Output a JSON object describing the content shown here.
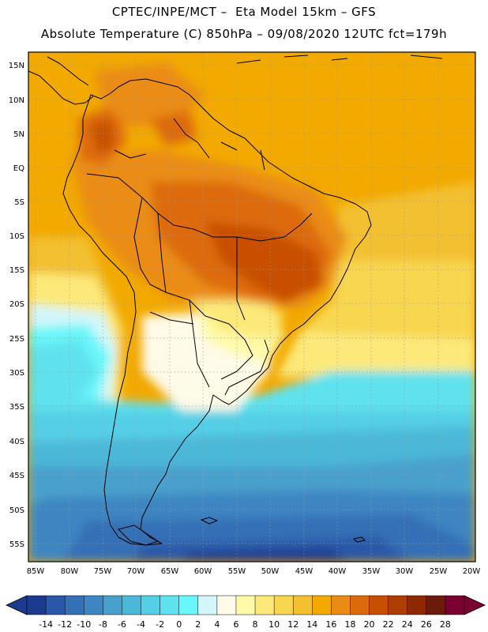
{
  "header": {
    "line1": "CPTEC/INPE/MCT –  Eta Model 15km – GFS",
    "line2": "Absolute Temperature (C) 850hPa – 09/08/2020 12UTC fct=179h"
  },
  "map": {
    "lat_labels": [
      "15N",
      "10N",
      "5N",
      "EQ",
      "5S",
      "10S",
      "15S",
      "20S",
      "25S",
      "30S",
      "35S",
      "40S",
      "45S",
      "50S",
      "55S"
    ],
    "lon_labels": [
      "85W",
      "80W",
      "75W",
      "70W",
      "65W",
      "60W",
      "55W",
      "50W",
      "45W",
      "40W",
      "35W",
      "30W",
      "25W",
      "20W"
    ],
    "graticule": "dotted"
  },
  "colorbar": {
    "labels": [
      "-14",
      "-12",
      "-10",
      "-8",
      "-6",
      "-4",
      "-2",
      "0",
      "2",
      "4",
      "6",
      "8",
      "10",
      "12",
      "14",
      "16",
      "18",
      "20",
      "22",
      "24",
      "26",
      "28"
    ],
    "colors": [
      "#1c3a8e",
      "#2a58a8",
      "#3470b6",
      "#3d86c2",
      "#4aa0cc",
      "#4cb8d8",
      "#55cfe6",
      "#5ee2ee",
      "#6af6fa",
      "#d2f6fa",
      "#fefae8",
      "#fefaa8",
      "#fce97a",
      "#f8d650",
      "#f3c030",
      "#f2a900",
      "#ea8c14",
      "#dd6a0a",
      "#c84f00",
      "#ad3d00",
      "#8e2800",
      "#6c1a0c",
      "#7a0030"
    ],
    "low_arrow_color": "#1c3a8e",
    "high_arrow_color": "#7a0030"
  }
}
